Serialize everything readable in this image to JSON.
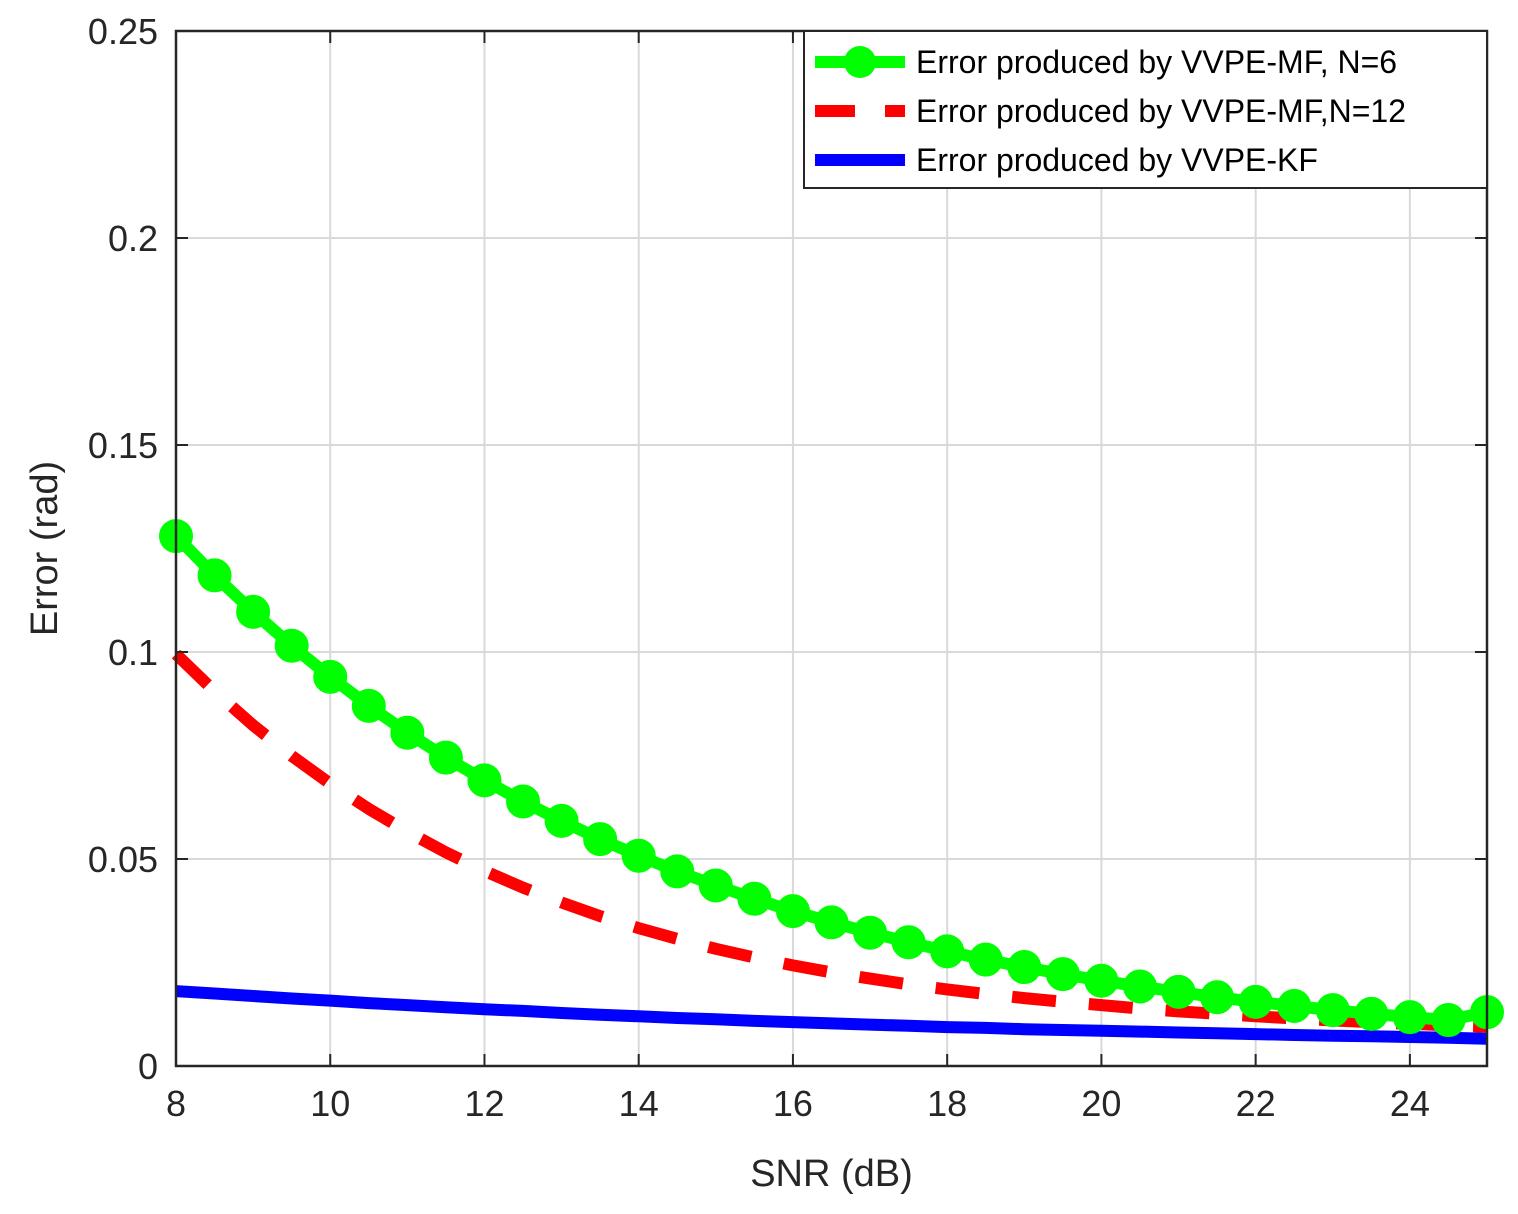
{
  "chart_data": {
    "type": "line",
    "title": "",
    "xlabel": "SNR (dB)",
    "ylabel": "Error (rad)",
    "xlim": [
      8,
      25
    ],
    "ylim": [
      0,
      0.25
    ],
    "xticks": [
      8,
      10,
      12,
      14,
      16,
      18,
      20,
      22,
      24
    ],
    "xtick_labels": [
      "8",
      "10",
      "12",
      "14",
      "16",
      "18",
      "20",
      "22",
      "24"
    ],
    "yticks": [
      0,
      0.05,
      0.1,
      0.15,
      0.2,
      0.25
    ],
    "ytick_labels": [
      "0",
      "0.05",
      "0.1",
      "0.15",
      "0.2",
      "0.25"
    ],
    "grid": true,
    "legend_position": "top-right",
    "x": [
      8,
      8.5,
      9,
      9.5,
      10,
      10.5,
      11,
      11.5,
      12,
      12.5,
      13,
      13.5,
      14,
      14.5,
      15,
      15.5,
      16,
      16.5,
      17,
      17.5,
      18,
      18.5,
      19,
      19.5,
      20,
      20.5,
      21,
      21.5,
      22,
      22.5,
      23,
      23.5,
      24,
      24.5,
      25
    ],
    "series": [
      {
        "name": "Error produced by VVPE-MF, N=6",
        "color": "#00ff00",
        "style": "solid-circle",
        "values": [
          0.128,
          0.1185,
          0.1097,
          0.1015,
          0.094,
          0.087,
          0.0805,
          0.0745,
          0.069,
          0.0639,
          0.0592,
          0.0548,
          0.0508,
          0.047,
          0.0436,
          0.0404,
          0.0374,
          0.0347,
          0.0322,
          0.0299,
          0.0277,
          0.0257,
          0.0239,
          0.0222,
          0.0206,
          0.0192,
          0.0179,
          0.0166,
          0.0155,
          0.0145,
          0.0135,
          0.0126,
          0.0118,
          0.0111,
          0.013
        ]
      },
      {
        "name": "Error produced by VVPE-MF,N=12",
        "color": "#ff0000",
        "style": "dashed",
        "values": [
          0.0995,
          0.0905,
          0.0823,
          0.0749,
          0.0682,
          0.0621,
          0.0566,
          0.0516,
          0.0471,
          0.0431,
          0.0395,
          0.0362,
          0.0333,
          0.0307,
          0.0283,
          0.0262,
          0.0243,
          0.0226,
          0.0211,
          0.0197,
          0.0185,
          0.0174,
          0.0164,
          0.0155,
          0.0147,
          0.0139,
          0.0132,
          0.0126,
          0.012,
          0.0115,
          0.011,
          0.0106,
          0.0102,
          0.0098,
          0.0095
        ]
      },
      {
        "name": "Error produced by VVPE-KF",
        "color": "#0000ff",
        "style": "solid",
        "values": [
          0.0181,
          0.0175,
          0.0169,
          0.0163,
          0.0158,
          0.0152,
          0.0147,
          0.0142,
          0.0137,
          0.0133,
          0.0128,
          0.0124,
          0.012,
          0.0116,
          0.0113,
          0.0109,
          0.0106,
          0.0103,
          0.01,
          0.0097,
          0.0094,
          0.0092,
          0.0089,
          0.0087,
          0.0085,
          0.0083,
          0.0081,
          0.0079,
          0.0077,
          0.0075,
          0.0073,
          0.0072,
          0.007,
          0.0068,
          0.0066
        ]
      }
    ]
  }
}
